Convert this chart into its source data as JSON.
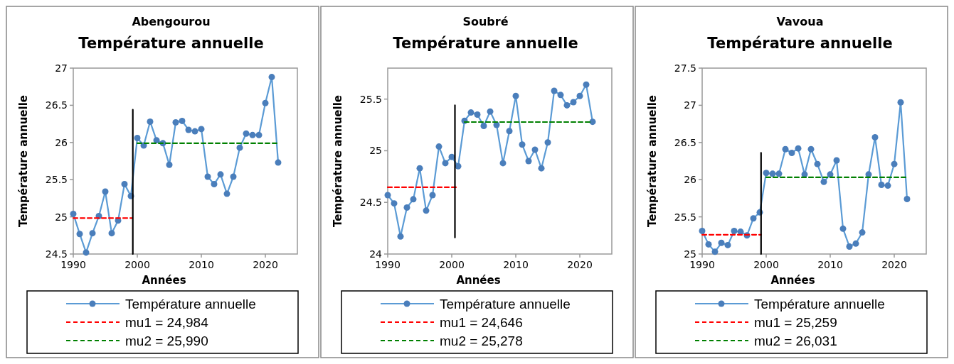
{
  "chart_data": [
    {
      "type": "line",
      "title": "Abengourou",
      "subtitle": "Température annuelle",
      "xlabel": "Années",
      "ylabel": "Température annuelle",
      "xlim": [
        1990,
        2025
      ],
      "xticks": [
        1990,
        2000,
        2010,
        2020
      ],
      "ylim": [
        24.5,
        27
      ],
      "yticks": [
        24.5,
        25,
        25.5,
        26,
        26.5,
        27
      ],
      "grid": false,
      "legend": "bottom",
      "marker": "circle",
      "series": [
        {
          "name": "Température annuelle",
          "color": "#5b9bd5",
          "x": [
            1990,
            1991,
            1992,
            1993,
            1994,
            1995,
            1996,
            1997,
            1998,
            1999,
            2000,
            2001,
            2002,
            2003,
            2004,
            2005,
            2006,
            2007,
            2008,
            2009,
            2010,
            2011,
            2012,
            2013,
            2014,
            2015,
            2016,
            2017,
            2018,
            2019,
            2020,
            2021,
            2022
          ],
          "values": [
            25.04,
            24.77,
            24.52,
            24.78,
            25.01,
            25.34,
            24.78,
            24.95,
            25.44,
            25.28,
            26.06,
            25.96,
            26.28,
            26.03,
            25.99,
            25.7,
            26.27,
            26.29,
            26.17,
            26.15,
            26.18,
            25.54,
            25.44,
            25.57,
            25.31,
            25.54,
            25.93,
            26.12,
            26.1,
            26.1,
            26.53,
            26.88,
            25.73
          ]
        },
        {
          "name": "mu1 = 24,984",
          "color": "#ff0000",
          "line_style": "dashed",
          "marker": "none",
          "x": [
            1990,
            1999.2
          ],
          "values": [
            24.984,
            24.984
          ]
        },
        {
          "name": "mu2 = 25,990",
          "color": "#008000",
          "line_style": "dashed",
          "marker": "none",
          "x": [
            2000,
            2022
          ],
          "values": [
            25.99,
            25.99
          ]
        },
        {
          "color": "#000000",
          "marker": "none",
          "x": [
            1999.3,
            1999.3
          ],
          "values": [
            24.5,
            26.44
          ]
        }
      ]
    },
    {
      "type": "line",
      "title": "Soubré",
      "subtitle": "Température annuelle",
      "xlabel": "Années",
      "ylabel": "Température annuelle",
      "xlim": [
        1990,
        2025
      ],
      "xticks": [
        1990,
        2000,
        2010,
        2020
      ],
      "ylim": [
        24,
        25.8
      ],
      "yticks": [
        24,
        24.5,
        25,
        25.5
      ],
      "grid": false,
      "legend": "bottom",
      "marker": "circle",
      "series": [
        {
          "name": "Température annuelle",
          "color": "#5b9bd5",
          "x": [
            1990,
            1991,
            1992,
            1993,
            1994,
            1995,
            1996,
            1997,
            1998,
            1999,
            2000,
            2001,
            2002,
            2003,
            2004,
            2005,
            2006,
            2007,
            2008,
            2009,
            2010,
            2011,
            2012,
            2013,
            2014,
            2015,
            2016,
            2017,
            2018,
            2019,
            2020,
            2021,
            2022
          ],
          "values": [
            24.57,
            24.49,
            24.17,
            24.45,
            24.53,
            24.83,
            24.42,
            24.57,
            25.04,
            24.88,
            24.94,
            24.85,
            25.29,
            25.37,
            25.35,
            25.24,
            25.38,
            25.25,
            24.88,
            25.19,
            25.53,
            25.06,
            24.9,
            25.01,
            24.83,
            25.08,
            25.58,
            25.54,
            25.44,
            25.47,
            25.53,
            25.64,
            25.28
          ]
        },
        {
          "name": "mu1 = 24,646",
          "color": "#ff0000",
          "line_style": "dashed",
          "marker": "none",
          "x": [
            1990,
            2000.75
          ],
          "values": [
            24.646,
            24.646
          ]
        },
        {
          "name": "mu2 = 25,278",
          "color": "#008000",
          "line_style": "dashed",
          "marker": "none",
          "x": [
            2002,
            2022
          ],
          "values": [
            25.278,
            25.278
          ]
        },
        {
          "color": "#000000",
          "marker": "none",
          "x": [
            2000.5,
            2000.5
          ],
          "values": [
            24.16,
            25.44
          ]
        }
      ]
    },
    {
      "type": "line",
      "title": "Vavoua",
      "subtitle": "Température annuelle",
      "xlabel": "Années",
      "ylabel": "Température annuelle",
      "xlim": [
        1990,
        2025
      ],
      "xticks": [
        1990,
        2000,
        2010,
        2020
      ],
      "ylim": [
        25,
        27.5
      ],
      "yticks": [
        25,
        25.5,
        26,
        26.5,
        27,
        27.5
      ],
      "grid": false,
      "legend": "bottom",
      "marker": "circle",
      "series": [
        {
          "name": "Température annuelle",
          "color": "#5b9bd5",
          "x": [
            1990,
            1991,
            1992,
            1993,
            1994,
            1995,
            1996,
            1997,
            1998,
            1999,
            2000,
            2001,
            2002,
            2003,
            2004,
            2005,
            2006,
            2007,
            2008,
            2009,
            2010,
            2011,
            2012,
            2013,
            2014,
            2015,
            2016,
            2017,
            2018,
            2019,
            2020,
            2021,
            2022
          ],
          "values": [
            25.31,
            25.13,
            25.03,
            25.15,
            25.12,
            25.31,
            25.3,
            25.25,
            25.48,
            25.56,
            26.09,
            26.08,
            26.08,
            26.41,
            26.36,
            26.42,
            26.07,
            26.41,
            26.21,
            25.97,
            26.07,
            26.26,
            25.34,
            25.1,
            25.14,
            25.29,
            26.07,
            26.57,
            25.93,
            25.92,
            26.21,
            27.04,
            25.74
          ]
        },
        {
          "name": "mu1 = 25,259",
          "color": "#ff0000",
          "line_style": "dashed",
          "marker": "none",
          "x": [
            1990,
            1999.2
          ],
          "values": [
            25.259,
            25.259
          ]
        },
        {
          "name": "mu2 = 26,031",
          "color": "#008000",
          "line_style": "dashed",
          "marker": "none",
          "x": [
            2000,
            2022
          ],
          "values": [
            26.031,
            26.031
          ]
        },
        {
          "color": "#000000",
          "marker": "none",
          "x": [
            1999.2,
            1999.2
          ],
          "values": [
            25,
            26.36
          ]
        }
      ]
    }
  ]
}
